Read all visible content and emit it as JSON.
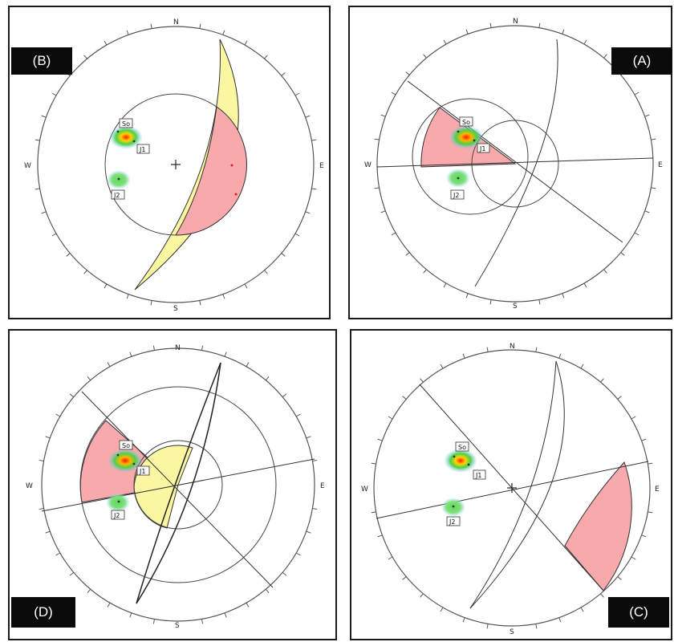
{
  "compass": {
    "north": "N",
    "south": "S",
    "east": "E",
    "west": "W"
  },
  "sets": {
    "bedding": "So",
    "joint1": "J1",
    "joint2": "J2"
  },
  "panels": [
    {
      "id": "B",
      "label": "(B)"
    },
    {
      "id": "A",
      "label": "(A)"
    },
    {
      "id": "D",
      "label": "(D)"
    },
    {
      "id": "C",
      "label": "(C)"
    }
  ],
  "colors": {
    "frame": "#1a1a1a",
    "circle": "#555555",
    "zone_red": "#f7a9ab",
    "zone_yellow": "#fbf6a1",
    "badge_bg": "#0b0b0b",
    "badge_text": "#ffffff"
  }
}
